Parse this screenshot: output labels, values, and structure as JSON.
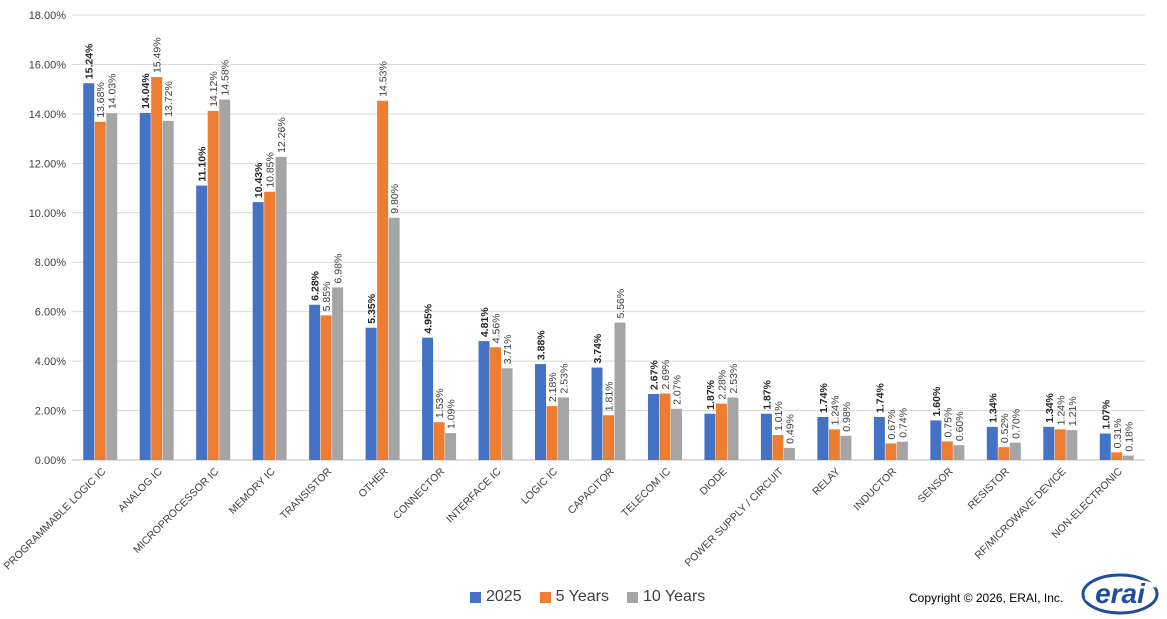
{
  "chart_data": {
    "type": "bar",
    "categories": [
      "PROGRAMMABLE LOGIC IC",
      "ANALOG IC",
      "MICROPROCESSOR IC",
      "MEMORY IC",
      "TRANSISTOR",
      "OTHER",
      "CONNECTOR",
      "INTERFACE IC",
      "LOGIC IC",
      "CAPACITOR",
      "TELECOM IC",
      "DIODE",
      "POWER SUPPLY / CIRCUIT",
      "RELAY",
      "INDUCTOR",
      "SENSOR",
      "RESISTOR",
      "RF/MICROWAVE DEVICE",
      "NON-ELECTRONIC"
    ],
    "series": [
      {
        "name": "2025",
        "color": "#4472C4",
        "values": [
          15.24,
          14.04,
          11.1,
          10.43,
          6.28,
          5.35,
          4.95,
          4.81,
          3.88,
          3.74,
          2.67,
          1.87,
          1.87,
          1.74,
          1.74,
          1.6,
          1.34,
          1.34,
          1.07
        ],
        "labels": [
          "15.24%",
          "14.04%",
          "11.10%",
          "10.43%",
          "6.28%",
          "5.35%",
          "4.95%",
          "4.81%",
          "3.88%",
          "3.74%",
          "2.67%",
          "1.87%",
          "1.87%",
          "1.74%",
          "1.74%",
          "1.60%",
          "1.34%",
          "1.34%",
          "1.07%"
        ]
      },
      {
        "name": "5 Years",
        "color": "#ED7D31",
        "values": [
          13.68,
          15.49,
          14.12,
          10.85,
          5.85,
          14.53,
          1.53,
          4.56,
          2.18,
          1.81,
          2.69,
          2.28,
          1.01,
          1.24,
          0.67,
          0.75,
          0.52,
          1.24,
          0.31
        ],
        "labels": [
          "13.68%",
          "15.49%",
          "14.12%",
          "10.85%",
          "5.85%",
          "14.53%",
          "1.53%",
          "4.56%",
          "2.18%",
          "1.81%",
          "2.69%",
          "2.28%",
          "1.01%",
          "1.24%",
          "0.67%",
          "0.75%",
          "0.52%",
          "1.24%",
          "0.31%"
        ]
      },
      {
        "name": "10 Years",
        "color": "#A5A5A5",
        "values": [
          14.03,
          13.72,
          14.58,
          12.26,
          6.98,
          9.8,
          1.09,
          3.71,
          2.53,
          5.56,
          2.07,
          2.53,
          0.49,
          0.98,
          0.74,
          0.6,
          0.7,
          1.21,
          0.18
        ],
        "labels": [
          "14.03%",
          "13.72%",
          "14.58%",
          "12.26%",
          "6.98%",
          "9.80%",
          "1.09%",
          "3.71%",
          "2.53%",
          "5.56%",
          "2.07%",
          "2.53%",
          "0.49%",
          "0.98%",
          "0.74%",
          "0.60%",
          "0.70%",
          "1.21%",
          "0.18%"
        ]
      }
    ],
    "yticks": [
      "0.00%",
      "2.00%",
      "4.00%",
      "6.00%",
      "8.00%",
      "10.00%",
      "12.00%",
      "14.00%",
      "16.00%",
      "18.00%"
    ],
    "ylim": [
      0,
      18
    ],
    "grid": true,
    "legend_position": "bottom-center"
  },
  "copyright": "Copyright © 2026, ERAI, Inc.",
  "logo": {
    "text": "erai",
    "icon": "erai-logo",
    "color": "#1F4E9E"
  }
}
